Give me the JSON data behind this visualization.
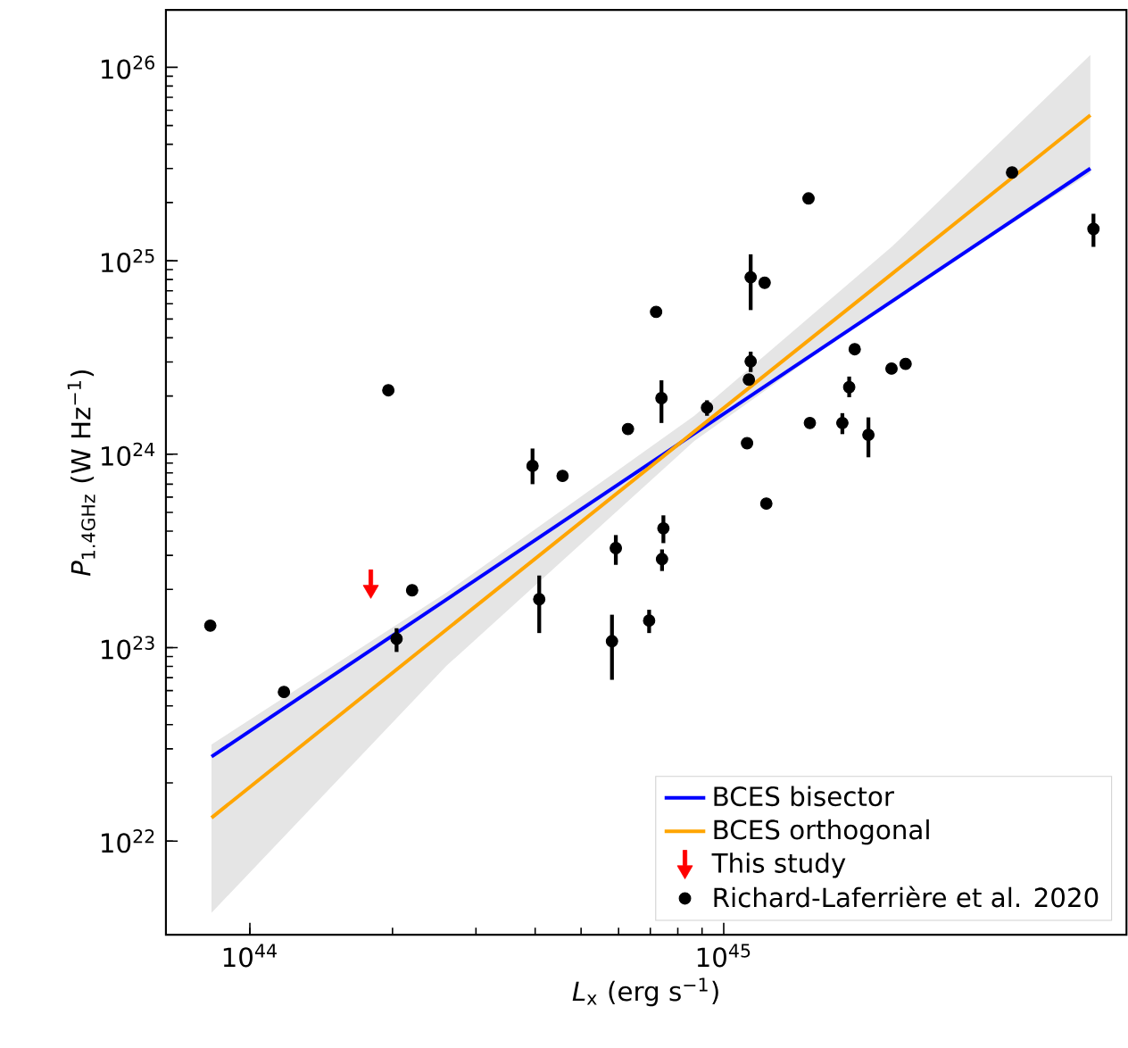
{
  "chart_data": {
    "type": "scatter",
    "xlabel": "*L*$_{x}$ (erg s$^{−1}$)",
    "ylabel": "*P*$_{1.4GHz}$ (W Hz$^{−1}$)",
    "log": "xy",
    "legend": "bottom right",
    "xlim": [
      6.65e+43,
      7.08e+45
    ],
    "ylim": [
      3.28e+21,
      1.98e+26
    ],
    "xticks": [
      {
        "value": 1e+44,
        "label": "10$^{44}$"
      },
      {
        "value": 1e+45,
        "label": "10$^{45}$"
      }
    ],
    "yticks": [
      {
        "value": 1e+22,
        "label": "10$^{22}$"
      },
      {
        "value": 1e+23,
        "label": "10$^{23}$"
      },
      {
        "value": 1e+24,
        "label": "10$^{24}$"
      },
      {
        "value": 1e+25,
        "label": "10$^{25}$"
      },
      {
        "value": 1e+26,
        "label": "10$^{26}$"
      }
    ],
    "series": [
      {
        "name": "BCES bisector",
        "type": "line",
        "color": "#0000ff",
        "x": [
          8.3e+43,
          5.94e+45
        ],
        "values": [
          2.73e+22,
          3e+25
        ]
      },
      {
        "name": "BCES orthogonal",
        "type": "line",
        "color": "#ffa500",
        "x": [
          8.3e+43,
          2.6e+44,
          8.67e+44,
          2.27e+45,
          5.94e+45
        ],
        "values": [
          1.32e+22,
          1.24e+23,
          1.31e+24,
          8.59e+24,
          5.66e+25
        ],
        "lower": [
          4.26e+21,
          8.06e+22,
          1.17e+24,
          6.28e+24,
          2.84e+25
        ],
        "upper": [
          3.16e+22,
          1.93e+23,
          1.58e+24,
          1.19e+25,
          1.16e+26
        ]
      },
      {
        "name": "This study",
        "color": "#ff0000",
        "marker": "triangle",
        "x": [
          1.8e+44
        ],
        "values": [
          2.13e+23
        ]
      },
      {
        "name": "Richard-Laferrière et al. 2020",
        "color": "#000000",
        "marker": "circle",
        "x": [
          8.25e+43,
          1.18e+44,
          1.96e+44,
          2.04e+44,
          2.2e+44,
          3.95e+44,
          4.08e+44,
          4.57e+44,
          5.81e+44,
          5.92e+44,
          6.28e+44,
          6.96e+44,
          7.2e+44,
          7.39e+44,
          7.46e+44,
          7.41e+44,
          9.22e+44,
          1.12e+45,
          1.13e+45,
          1.14e+45,
          1.14e+45,
          1.22e+45,
          1.23e+45,
          1.51e+45,
          1.52e+45,
          1.78e+45,
          1.84e+45,
          1.89e+45,
          2.02e+45,
          2.26e+45,
          2.42e+45,
          4.06e+45,
          6.03e+45
        ],
        "values": [
          1.3e+23,
          5.9e+22,
          2.14e+24,
          1.11e+23,
          1.98e+23,
          8.7e+23,
          1.78e+23,
          7.73e+23,
          1.08e+23,
          3.27e+23,
          1.35e+24,
          1.38e+23,
          5.44e+24,
          1.95e+24,
          4.14e+23,
          2.87e+23,
          1.74e+24,
          1.14e+24,
          2.43e+24,
          3.02e+24,
          8.22e+24,
          7.7e+24,
          5.56e+23,
          2.1e+25,
          1.45e+24,
          1.45e+24,
          2.22e+24,
          3.49e+24,
          1.26e+24,
          2.77e+24,
          2.93e+24,
          2.86e+25,
          1.46e+25
        ],
        "errors": [
          null,
          null,
          null,
          [
            9.5e+22,
            1.26e+23
          ],
          null,
          [
            7e+23,
            1.07e+24
          ],
          [
            1.19e+23,
            2.36e+23
          ],
          null,
          [
            6.82e+22,
            1.48e+23
          ],
          [
            2.68e+23,
            3.82e+23
          ],
          null,
          [
            1.19e+23,
            1.57e+23
          ],
          null,
          [
            1.45e+24,
            2.41e+24
          ],
          [
            3.47e+23,
            4.83e+23
          ],
          [
            2.49e+23,
            3.22e+23
          ],
          [
            1.58e+24,
            1.9e+24
          ],
          null,
          null,
          [
            2.66e+24,
            3.39e+24
          ],
          [
            5.56e+24,
            1.08e+25
          ],
          null,
          null,
          null,
          null,
          [
            1.27e+24,
            1.63e+24
          ],
          [
            1.97e+24,
            2.52e+24
          ],
          null,
          [
            9.64e+23,
            1.55e+24
          ],
          null,
          null,
          null,
          [
            1.18e+25,
            1.75e+25
          ]
        ]
      }
    ]
  }
}
